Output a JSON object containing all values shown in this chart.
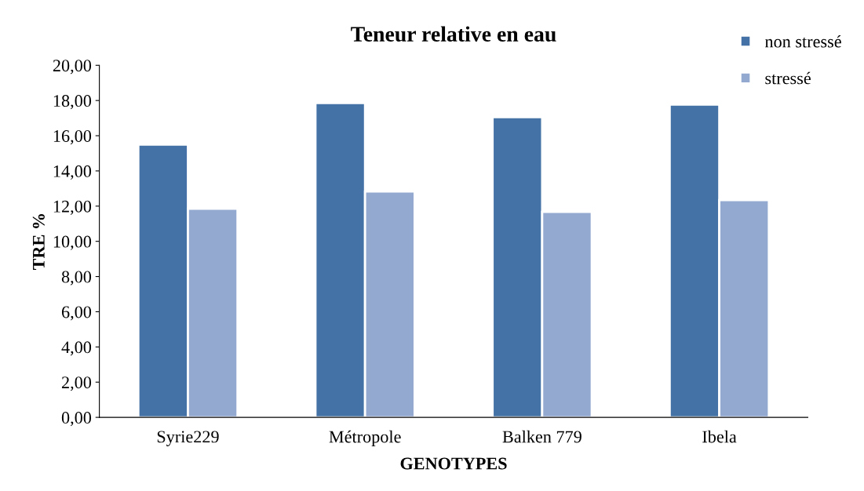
{
  "chart_data": {
    "type": "bar",
    "title": "Teneur relative en eau",
    "xlabel": "GENOTYPES",
    "ylabel": "TRE %",
    "categories": [
      "Syrie229",
      "Métropole",
      "Balken 779",
      "Ibela"
    ],
    "series": [
      {
        "name": "non stressé",
        "color": "#4472a6",
        "values": [
          15.5,
          17.86,
          17.06,
          17.77
        ]
      },
      {
        "name": "stressé",
        "color": "#94a9d0",
        "values": [
          11.85,
          12.83,
          11.67,
          12.34
        ]
      }
    ],
    "ylim": [
      0,
      20
    ],
    "yticks": [
      {
        "value": 0,
        "label": "0,00"
      },
      {
        "value": 2,
        "label": "2,00"
      },
      {
        "value": 4,
        "label": "4,00"
      },
      {
        "value": 6,
        "label": "6,00"
      },
      {
        "value": 8,
        "label": "8,00"
      },
      {
        "value": 10,
        "label": "10,00"
      },
      {
        "value": 12,
        "label": "12,00"
      },
      {
        "value": 14,
        "label": "14,00"
      },
      {
        "value": 16,
        "label": "16,00"
      },
      {
        "value": 18,
        "label": "18,00"
      },
      {
        "value": 20,
        "label": "20,00"
      }
    ],
    "grid": false,
    "legend": "top right"
  }
}
